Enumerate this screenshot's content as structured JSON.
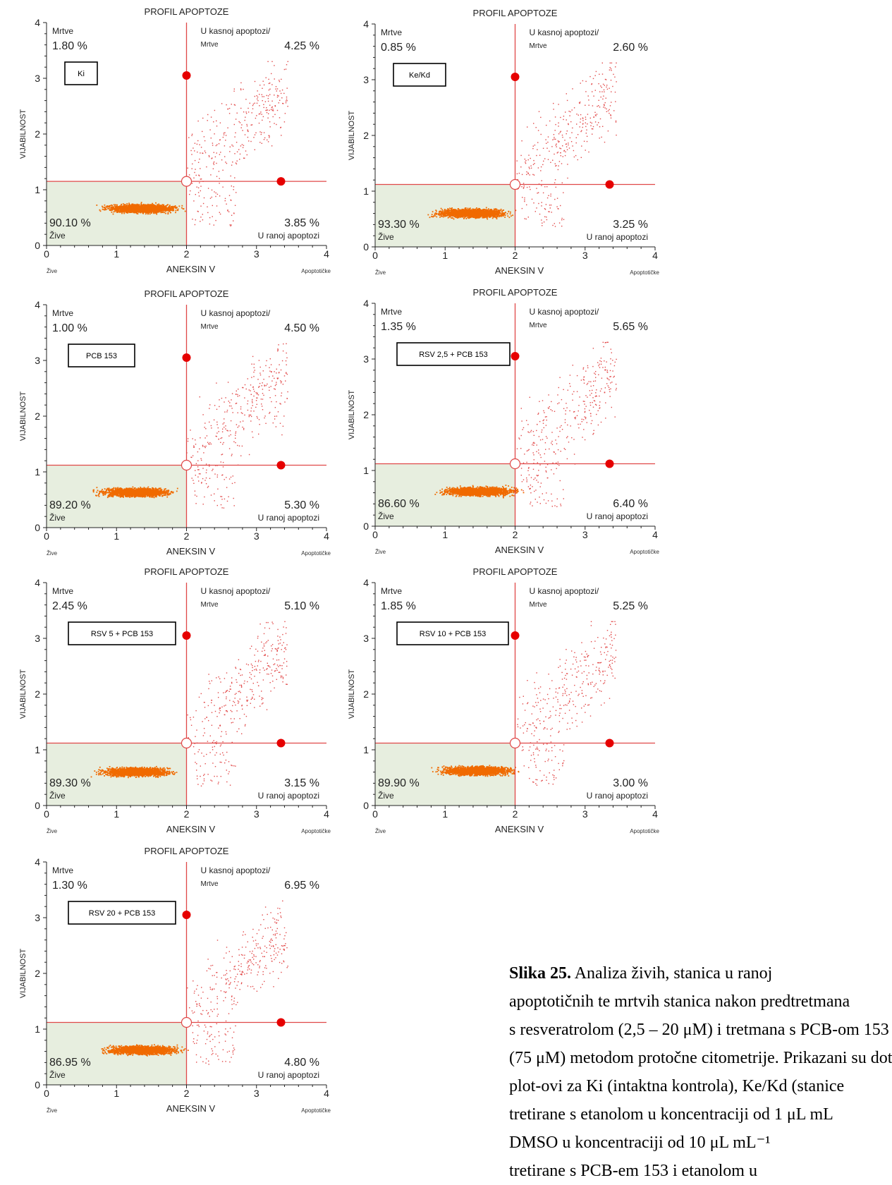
{
  "colors": {
    "axis": "#222222",
    "quadrant_line": "#e04848",
    "live_fill": "#e7eedf",
    "dense_points": "#f06a00",
    "sparse_points": "#e24a4a",
    "marker": "#e60000"
  },
  "chart_data": [
    {
      "type": "scatter",
      "title": "PROFIL APOPTOZE",
      "xlabel": "ANEKSIN V",
      "ylabel": "VIJABILNOST",
      "x_left_label": "Žive",
      "x_right_label": "Apoptotičke",
      "xlim": [
        0,
        4
      ],
      "ylim": [
        0,
        4
      ],
      "xticks": [
        "0",
        "1",
        "2",
        "3",
        "4"
      ],
      "yticks": [
        "0",
        "1",
        "2",
        "3",
        "4"
      ],
      "treatment": "Ki",
      "quadrants": {
        "dead": {
          "label": "Mrtve",
          "value": "1.80 %"
        },
        "late": {
          "label": "U kasnoj apoptozi/",
          "label2": "Mrtve",
          "value": "4.25 %"
        },
        "early": {
          "label": "U ranoj apoptozi",
          "value": "3.85 %"
        },
        "live": {
          "label": "Žive",
          "value": "90.10 %"
        }
      },
      "gate": {
        "x": 2.0,
        "y": 1.15
      }
    },
    {
      "type": "scatter",
      "title": "PROFIL APOPTOZE",
      "xlabel": "ANEKSIN V",
      "ylabel": "VIJABILNOST",
      "x_left_label": "Žive",
      "x_right_label": "Apoptotičke",
      "xlim": [
        0,
        4
      ],
      "ylim": [
        0,
        4
      ],
      "xticks": [
        "0",
        "1",
        "2",
        "3",
        "4"
      ],
      "yticks": [
        "0",
        "1",
        "2",
        "3",
        "4"
      ],
      "treatment": "Ke/Kd",
      "quadrants": {
        "dead": {
          "label": "Mrtve",
          "value": "0.85 %"
        },
        "late": {
          "label": "U kasnoj apoptozi/",
          "label2": "Mrtve",
          "value": "2.60 %"
        },
        "early": {
          "label": "U ranoj apoptozi",
          "value": "3.25 %"
        },
        "live": {
          "label": "Žive",
          "value": "93.30 %"
        }
      },
      "gate": {
        "x": 2.0,
        "y": 1.12
      }
    },
    {
      "type": "scatter",
      "title": "PROFIL APOPTOZE",
      "xlabel": "ANEKSIN V",
      "ylabel": "VIJABILNOST",
      "x_left_label": "Žive",
      "x_right_label": "Apoptotičke",
      "xlim": [
        0,
        4
      ],
      "ylim": [
        0,
        4
      ],
      "xticks": [
        "0",
        "1",
        "2",
        "3",
        "4"
      ],
      "yticks": [
        "0",
        "1",
        "2",
        "3",
        "4"
      ],
      "treatment": "PCB 153",
      "quadrants": {
        "dead": {
          "label": "Mrtve",
          "value": "1.00 %"
        },
        "late": {
          "label": "U kasnoj apoptozi/",
          "label2": "Mrtve",
          "value": "4.50 %"
        },
        "early": {
          "label": "U ranoj apoptozi",
          "value": "5.30 %"
        },
        "live": {
          "label": "Žive",
          "value": "89.20 %"
        }
      },
      "gate": {
        "x": 2.0,
        "y": 1.12
      }
    },
    {
      "type": "scatter",
      "title": "PROFIL APOPTOZE",
      "xlabel": "ANEKSIN V",
      "ylabel": "VIJABILNOST",
      "x_left_label": "Žive",
      "x_right_label": "Apoptotičke",
      "xlim": [
        0,
        4
      ],
      "ylim": [
        0,
        4
      ],
      "xticks": [
        "0",
        "1",
        "2",
        "3",
        "4"
      ],
      "yticks": [
        "0",
        "1",
        "2",
        "3",
        "4"
      ],
      "treatment": "RSV 2,5 + PCB 153",
      "quadrants": {
        "dead": {
          "label": "Mrtve",
          "value": "1.35 %"
        },
        "late": {
          "label": "U kasnoj apoptozi/",
          "label2": "Mrtve",
          "value": "5.65 %"
        },
        "early": {
          "label": "U ranoj apoptozi",
          "value": "6.40 %"
        },
        "live": {
          "label": "Žive",
          "value": "86.60 %"
        }
      },
      "gate": {
        "x": 2.0,
        "y": 1.12
      }
    },
    {
      "type": "scatter",
      "title": "PROFIL APOPTOZE",
      "xlabel": "ANEKSIN V",
      "ylabel": "VIJABILNOST",
      "x_left_label": "Žive",
      "x_right_label": "Apoptotičke",
      "xlim": [
        0,
        4
      ],
      "ylim": [
        0,
        4
      ],
      "xticks": [
        "0",
        "1",
        "2",
        "3",
        "4"
      ],
      "yticks": [
        "0",
        "1",
        "2",
        "3",
        "4"
      ],
      "treatment": "RSV 5 + PCB 153",
      "quadrants": {
        "dead": {
          "label": "Mrtve",
          "value": "2.45 %"
        },
        "late": {
          "label": "U kasnoj apoptozi/",
          "label2": "Mrtve",
          "value": "5.10 %"
        },
        "early": {
          "label": "U ranoj apoptozi",
          "value": "3.15 %"
        },
        "live": {
          "label": "Žive",
          "value": "89.30 %"
        }
      },
      "gate": {
        "x": 2.0,
        "y": 1.12
      }
    },
    {
      "type": "scatter",
      "title": "PROFIL APOPTOZE",
      "xlabel": "ANEKSIN V",
      "ylabel": "VIJABILNOST",
      "x_left_label": "Žive",
      "x_right_label": "Apoptotičke",
      "xlim": [
        0,
        4
      ],
      "ylim": [
        0,
        4
      ],
      "xticks": [
        "0",
        "1",
        "2",
        "3",
        "4"
      ],
      "yticks": [
        "0",
        "1",
        "2",
        "3",
        "4"
      ],
      "treatment": "RSV 10 + PCB 153",
      "quadrants": {
        "dead": {
          "label": "Mrtve",
          "value": "1.85 %"
        },
        "late": {
          "label": "U kasnoj apoptozi/",
          "label2": "Mrtve",
          "value": "5.25 %"
        },
        "early": {
          "label": "U ranoj apoptozi",
          "value": "3.00 %"
        },
        "live": {
          "label": "Žive",
          "value": "89.90 %"
        }
      },
      "gate": {
        "x": 2.0,
        "y": 1.12
      }
    },
    {
      "type": "scatter",
      "title": "PROFIL APOPTOZE",
      "xlabel": "ANEKSIN V",
      "ylabel": "VIJABILNOST",
      "x_left_label": "Žive",
      "x_right_label": "Apoptotičke",
      "xlim": [
        0,
        4
      ],
      "ylim": [
        0,
        4
      ],
      "xticks": [
        "0",
        "1",
        "2",
        "3",
        "4"
      ],
      "yticks": [
        "0",
        "1",
        "2",
        "3",
        "4"
      ],
      "treatment": "RSV 20 + PCB 153",
      "quadrants": {
        "dead": {
          "label": "Mrtve",
          "value": "1.30 %"
        },
        "late": {
          "label": "U kasnoj apoptozi/",
          "label2": "Mrtve",
          "value": "6.95 %"
        },
        "early": {
          "label": "U ranoj apoptozi",
          "value": "4.80 %"
        },
        "live": {
          "label": "Žive",
          "value": "86.95 %"
        }
      },
      "gate": {
        "x": 2.0,
        "y": 1.12
      }
    }
  ],
  "caption": {
    "label": "Slika 25.",
    "lines": [
      " Analiza živih, stanica u ranoj",
      "apoptotičnih te mrtvih stanica nakon predtretmana",
      "s resveratrolom (2,5 – 20 μM) i tretmana s PCB-om 153",
      "(75 μM) metodom protočne citometrije. Prikazani su dot",
      "plot-ovi za Ki (intaktna kontrola), Ke/Kd (stanice",
      "tretirane s etanolom u koncentraciji od 1 μL mL",
      "DMSO u koncentraciji od 10 μL mL⁻¹",
      "tretirane s PCB-em 153 i etanolom u"
    ]
  }
}
